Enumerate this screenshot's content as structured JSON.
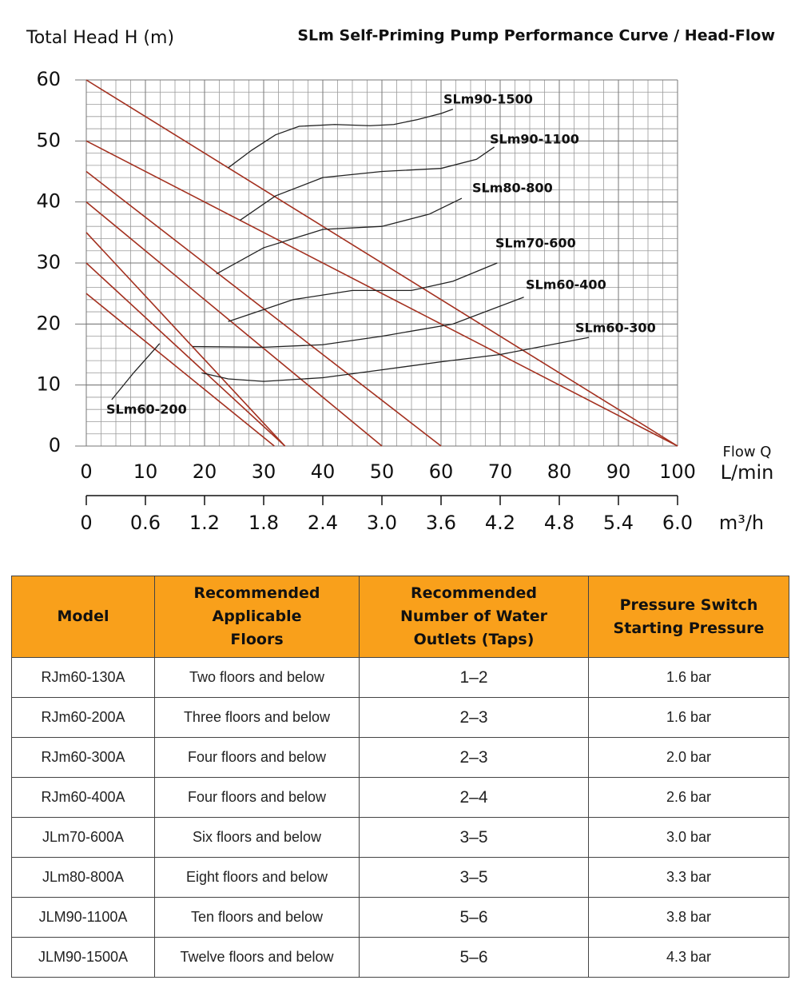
{
  "chart_data": {
    "type": "line",
    "title": "SLm Self-Priming Pump Performance Curve / Head-Flow",
    "ylabel": "Total Head H (m)",
    "xlabel": "Flow Q",
    "xunit": "L/min",
    "x2unit": "m³/h",
    "xlim": [
      0,
      100
    ],
    "ylim": [
      0,
      60
    ],
    "x2lim": [
      0,
      6
    ],
    "xticks": [
      0,
      10,
      20,
      30,
      40,
      50,
      60,
      70,
      80,
      90,
      100
    ],
    "yticks": [
      0,
      10,
      20,
      30,
      40,
      50,
      60
    ],
    "x2ticks": [
      0,
      0.6,
      1.2,
      1.8,
      2.4,
      {
        "value": 3,
        "label": "3.0"
      },
      3.6,
      4.2,
      4.8,
      5.4,
      {
        "value": 6,
        "label": "6.0"
      }
    ],
    "grid": true,
    "minor_grid": {
      "x": 2.5,
      "y": 2
    },
    "series": [
      {
        "color": "#a3301f",
        "x": [
          0,
          100
        ],
        "values": [
          60,
          0
        ]
      },
      {
        "color": "#a3301f",
        "x": [
          0,
          100
        ],
        "values": [
          50,
          0
        ]
      },
      {
        "color": "#a3301f",
        "x": [
          0,
          60
        ],
        "values": [
          45,
          0
        ]
      },
      {
        "color": "#a3301f",
        "x": [
          0,
          50
        ],
        "values": [
          40,
          0
        ]
      },
      {
        "color": "#a3301f",
        "x": [
          0,
          33.6
        ],
        "values": [
          35,
          0
        ]
      },
      {
        "color": "#a3301f",
        "x": [
          0,
          33.6
        ],
        "values": [
          30,
          0
        ]
      },
      {
        "color": "#a3301f",
        "x": [
          0,
          31.8
        ],
        "values": [
          25,
          0
        ]
      },
      {
        "name": "SLm90-1500",
        "color": "#222222",
        "x": [
          24,
          28,
          32,
          36,
          42,
          48,
          52,
          56,
          60,
          62
        ],
        "values": [
          45.6,
          48.5,
          51,
          52.4,
          52.7,
          52.5,
          52.7,
          53.5,
          54.5,
          55.2
        ]
      },
      {
        "name": "SLm90-1100",
        "color": "#222222",
        "x": [
          26,
          32,
          40,
          50,
          60,
          66,
          69
        ],
        "values": [
          37,
          41,
          44,
          45,
          45.5,
          47,
          49
        ]
      },
      {
        "name": "SLm80-800",
        "color": "#222222",
        "x": [
          22,
          30,
          40,
          50,
          58,
          63.5
        ],
        "values": [
          28.2,
          32.5,
          35.5,
          36,
          38,
          40.6
        ]
      },
      {
        "name": "SLm70-600",
        "color": "#222222",
        "x": [
          24,
          35,
          45,
          55,
          62,
          69.5
        ],
        "values": [
          20.4,
          24,
          25.5,
          25.5,
          27,
          30
        ]
      },
      {
        "name": "SLm60-400",
        "color": "#222222",
        "x": [
          18,
          30,
          40,
          50,
          62,
          74
        ],
        "values": [
          16.3,
          16.2,
          16.6,
          18,
          20,
          24.4
        ]
      },
      {
        "name": "SLm60-300",
        "color": "#222222",
        "x": [
          19.5,
          24,
          30,
          40,
          50,
          60,
          70,
          85
        ],
        "values": [
          12,
          11,
          10.6,
          11.2,
          12.5,
          13.8,
          15,
          17.8
        ]
      },
      {
        "name": "SLm60-200",
        "color": "#222222",
        "x": [
          4.3,
          8,
          12.4
        ],
        "values": [
          7.6,
          12,
          16.8
        ]
      }
    ]
  },
  "table": {
    "header": [
      "Model",
      "Recommended Applicable Floors",
      "Recommended Number of Water Outlets (Taps)",
      "Pressure Switch Starting Pressure"
    ],
    "rows": [
      [
        "RJm60-130A",
        "Two floors and below",
        "1–2",
        "1.6 bar"
      ],
      [
        "RJm60-200A",
        "Three floors and below",
        "2–3",
        "1.6 bar"
      ],
      [
        "RJm60-300A",
        "Four floors and below",
        "2–3",
        "2.0 bar"
      ],
      [
        "RJm60-400A",
        "Four floors and below",
        "2–4",
        "2.6 bar"
      ],
      [
        "JLm70-600A",
        "Six floors and below",
        "3–5",
        "3.0 bar"
      ],
      [
        "JLm80-800A",
        "Eight floors and below",
        "3–5",
        "3.3 bar"
      ],
      [
        "JLM90-1100A",
        "Ten floors and below",
        "5–6",
        "3.8 bar"
      ],
      [
        "JLM90-1500A",
        "Twelve floors and below",
        "5–6",
        "4.3 bar"
      ]
    ]
  }
}
